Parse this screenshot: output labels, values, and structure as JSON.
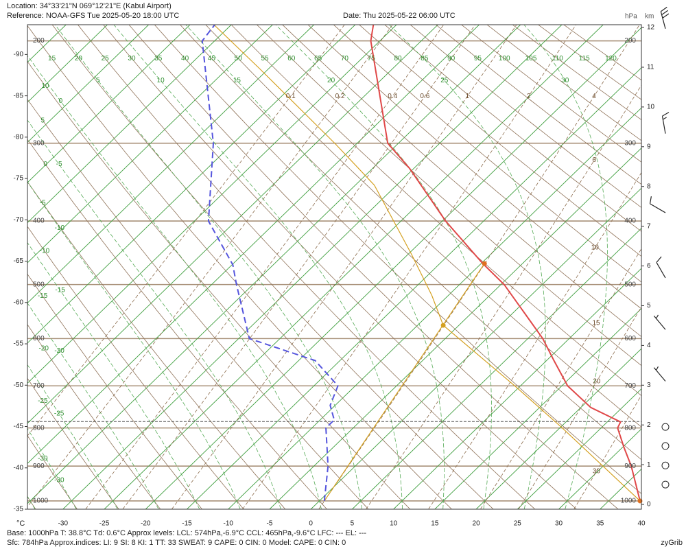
{
  "header": {
    "location": "Location:  34°33'21\"N  069°12'21\"E (Kabul Airport)",
    "reference": "Reference: NOAA-GFS Tue 2025-05-20 18:00 UTC",
    "date": "Date: Thu 2025-05-22 06:00 UTC"
  },
  "chart_data": {
    "type": "skew-t",
    "x_label": "°C",
    "y_label": "hPa",
    "y2_label": "km",
    "xlim": [
      -34.3,
      40
    ],
    "xticks": [
      -30,
      -25,
      -20,
      -15,
      -10,
      -5,
      0,
      5,
      10,
      15,
      20,
      25,
      30,
      35,
      40
    ],
    "ylim": [
      1025,
      187
    ],
    "yticks": [
      1000,
      900,
      800,
      700,
      600,
      500,
      400,
      300,
      200
    ],
    "y2lim": [
      -0.12,
      12.07
    ],
    "y2ticks": [
      0,
      1,
      2,
      3,
      4,
      5,
      6,
      7,
      8,
      9,
      10,
      11,
      12
    ],
    "y3lim": [
      -35,
      -93.6
    ],
    "y3ticks": [
      -35,
      -40,
      -45,
      -50,
      -55,
      -60,
      -65,
      -70,
      -75,
      -80,
      -85,
      -90
    ],
    "isotherms": [
      -95,
      -90,
      -85,
      -80,
      -75,
      -70,
      -65,
      -60,
      -55,
      -50,
      -45,
      -40,
      -35,
      -30,
      -25,
      -20,
      -15,
      -10,
      -5,
      0,
      5,
      10,
      15,
      20,
      25,
      30,
      35,
      40
    ],
    "dry_adiabats": [
      -35,
      -30,
      -25,
      -20,
      -15,
      -10,
      -5,
      0,
      5,
      10,
      15,
      20,
      25,
      30,
      35,
      40,
      45,
      50,
      55,
      60,
      65,
      70,
      75,
      80,
      85,
      90,
      95,
      100,
      105,
      110,
      115,
      120
    ],
    "moist_adiabats": [
      -35,
      -30,
      -25,
      -20,
      -15,
      -10,
      -5,
      0,
      5,
      10,
      15,
      20,
      25,
      30
    ],
    "mixing_ratios": [
      0.1,
      0.2,
      0.4,
      0.6,
      1,
      2,
      4,
      6,
      10,
      15,
      20,
      30
    ],
    "temperature": {
      "color": "#e04848",
      "pressures": [
        1000,
        900,
        850,
        800,
        785,
        750,
        700,
        645,
        600,
        500,
        465,
        400,
        330,
        300,
        200,
        187
      ],
      "values": [
        38.8,
        33.4,
        30.2,
        27.0,
        26.6,
        21.2,
        15.7,
        10.9,
        6.8,
        -4.6,
        -9.8,
        -19.6,
        -30.5,
        -36.3,
        -51.1,
        -52.8
      ]
    },
    "dewpoint": {
      "color": "#5555dd",
      "pressures": [
        1000,
        900,
        800,
        780,
        745,
        700,
        645,
        600,
        500,
        467,
        400,
        300,
        200,
        187
      ],
      "values": [
        0.6,
        -3.3,
        -8.3,
        -8.3,
        -10.6,
        -12.1,
        -18.0,
        -28.7,
        -37.0,
        -39.9,
        -48.3,
        -57.4,
        -71.5,
        -72.0
      ]
    },
    "parcel": {
      "color": "#d4a020",
      "pressures": [
        1000,
        800,
        700,
        574,
        519,
        450,
        351,
        301,
        224,
        187
      ],
      "values": [
        38.8,
        20.3,
        9.3,
        -6.9,
        -12.0,
        -19.6,
        -32.7,
        -42.5,
        -61.1,
        -72.1
      ]
    },
    "ccl_line": {
      "color": "#d4a020",
      "pressures": [
        1000,
        465
      ],
      "values": [
        0.6,
        -9.6
      ]
    },
    "lcl": {
      "pressure": 574,
      "value": -6.9
    },
    "ccl": {
      "pressure": 465,
      "value": -9.6
    },
    "surface_pressure": 784,
    "wind": {
      "heights": [
        11.97,
        9.33,
        7.34,
        5.7,
        4.4,
        3.1,
        1.95,
        1.47,
        0.98,
        0.5
      ],
      "speeds": [
        30,
        15,
        10,
        10,
        5,
        5,
        0,
        0,
        0,
        0
      ],
      "directions": [
        345,
        350,
        300,
        330,
        320,
        320,
        null,
        null,
        null,
        null
      ]
    }
  },
  "footer": {
    "line1": "Base: 1000hPa  T: 38.8°C  Td: 0.6°C     Approx levels:  LCL: 574hPa,-6.9°C   CCL: 465hPa,-9.6°C   LFC: ---    EL: ---",
    "line2": "Sfc: 784hPa          Approx.indices:  LI: 9   SI: 8   KI: 1   TT: 33   SWEAT: 9      CAPE: 0  CIN: 0          Model: CAPE: 0 CIN: 0",
    "credit": "zyGrib"
  }
}
